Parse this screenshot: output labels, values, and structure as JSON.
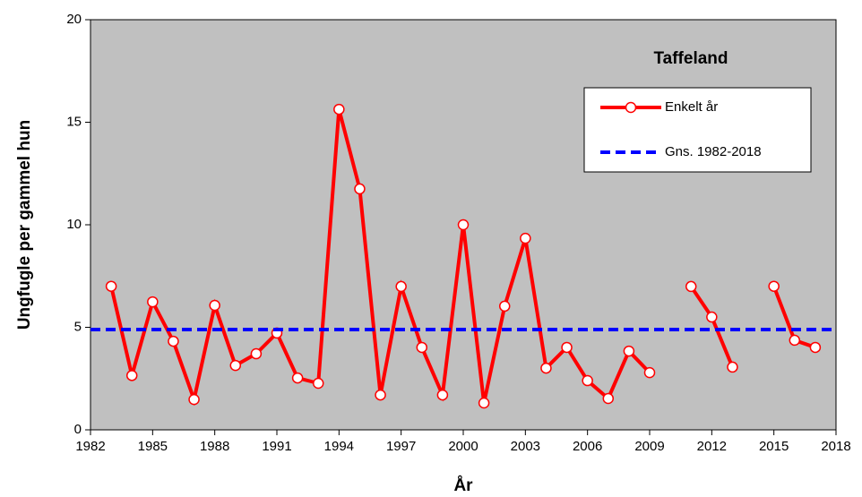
{
  "chart_data": {
    "type": "line",
    "title": "Taffeland",
    "xlabel": "År",
    "ylabel": "Ungfugle per gammel hun",
    "xlim": [
      1982,
      2018
    ],
    "xticks": [
      1982,
      1985,
      1988,
      1991,
      1994,
      1997,
      2000,
      2003,
      2006,
      2009,
      2012,
      2015,
      2018
    ],
    "ylim": [
      0,
      20
    ],
    "yticks": [
      0,
      5,
      10,
      15,
      20
    ],
    "background": "#c0c0c0",
    "series": [
      {
        "name": "Enkelt år",
        "color": "#ff0000",
        "markers": true,
        "dashed": false,
        "x": [
          1983,
          1984,
          1985,
          1986,
          1987,
          1988,
          1989,
          1990,
          1991,
          1992,
          1993,
          1994,
          1995,
          1996,
          1997,
          1998,
          1999,
          2000,
          2001,
          2002,
          2003,
          2004,
          2005,
          2006,
          2007,
          2008,
          2009,
          2010,
          2011,
          2012,
          2013,
          2014,
          2015,
          2016,
          2017
        ],
        "values": [
          7.0,
          2.65,
          6.24,
          4.32,
          1.48,
          6.07,
          3.14,
          3.71,
          4.72,
          2.53,
          2.27,
          15.63,
          11.75,
          1.7,
          6.99,
          4.02,
          1.7,
          10.0,
          1.31,
          6.03,
          9.34,
          3.01,
          4.02,
          2.4,
          1.53,
          3.84,
          2.79,
          null,
          6.99,
          5.5,
          3.06,
          null,
          7.0,
          4.37,
          4.02
        ]
      },
      {
        "name": "Gns. 1982-2018",
        "color": "#0000ff",
        "markers": false,
        "dashed": true,
        "x": [
          1982,
          2018
        ],
        "values": [
          4.89,
          4.89
        ]
      }
    ]
  }
}
